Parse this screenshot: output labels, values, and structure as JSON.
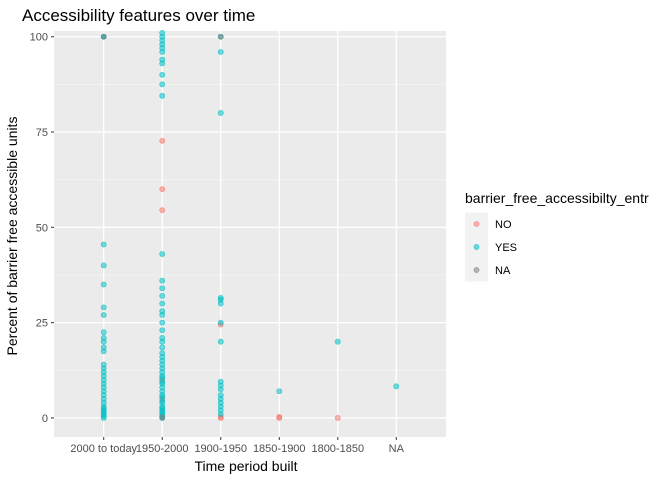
{
  "chart_data": {
    "type": "scatter",
    "title": "Accessibility features over time",
    "xlabel": "Time period built",
    "ylabel": "Percent of barrier free accessible units",
    "categories": [
      "2000 to today",
      "1950-2000",
      "1900-1950",
      "1850-1900",
      "1800-1850",
      "NA"
    ],
    "ylim": [
      -5,
      101.5
    ],
    "yticks": [
      0,
      25,
      50,
      75,
      100
    ],
    "grid": true,
    "legend": {
      "title": "barrier_free_accessibilty_entr",
      "placement": "right",
      "entries": [
        {
          "label": "NO",
          "color": "#F8766D"
        },
        {
          "label": "YES",
          "color": "#00BFC4"
        },
        {
          "label": "NA",
          "color": "#7F7F7F"
        }
      ]
    },
    "series": [
      {
        "name": "NO",
        "color": "#F8766D",
        "points": [
          [
            "1950-2000",
            72.7
          ],
          [
            "1950-2000",
            60
          ],
          [
            "1950-2000",
            54.5
          ],
          [
            "1950-2000",
            0
          ],
          [
            "1950-2000",
            5
          ],
          [
            "1950-2000",
            10
          ],
          [
            "1900-1950",
            24.5
          ],
          [
            "1900-1950",
            0
          ],
          [
            "1900-1950",
            0.3
          ],
          [
            "1850-1900",
            0
          ],
          [
            "1850-1900",
            0.3
          ],
          [
            "1800-1850",
            0
          ]
        ]
      },
      {
        "name": "YES",
        "color": "#00BFC4",
        "points": [
          [
            "2000 to today",
            100
          ],
          [
            "2000 to today",
            100
          ],
          [
            "2000 to today",
            45.5
          ],
          [
            "2000 to today",
            40
          ],
          [
            "2000 to today",
            35
          ],
          [
            "2000 to today",
            29
          ],
          [
            "2000 to today",
            27
          ],
          [
            "2000 to today",
            22.5
          ],
          [
            "2000 to today",
            21
          ],
          [
            "2000 to today",
            20
          ],
          [
            "2000 to today",
            18.5
          ],
          [
            "2000 to today",
            17.5
          ],
          [
            "2000 to today",
            14
          ],
          [
            "2000 to today",
            13
          ],
          [
            "2000 to today",
            12
          ],
          [
            "2000 to today",
            11
          ],
          [
            "2000 to today",
            10
          ],
          [
            "2000 to today",
            9
          ],
          [
            "2000 to today",
            8
          ],
          [
            "2000 to today",
            7
          ],
          [
            "2000 to today",
            6
          ],
          [
            "2000 to today",
            5
          ],
          [
            "2000 to today",
            4
          ],
          [
            "2000 to today",
            3
          ],
          [
            "2000 to today",
            2.5
          ],
          [
            "2000 to today",
            2
          ],
          [
            "2000 to today",
            1.5
          ],
          [
            "2000 to today",
            1
          ],
          [
            "2000 to today",
            0.5
          ],
          [
            "2000 to today",
            0
          ],
          [
            "1950-2000",
            101
          ],
          [
            "1950-2000",
            100
          ],
          [
            "1950-2000",
            99
          ],
          [
            "1950-2000",
            98
          ],
          [
            "1950-2000",
            97
          ],
          [
            "1950-2000",
            96
          ],
          [
            "1950-2000",
            94
          ],
          [
            "1950-2000",
            93
          ],
          [
            "1950-2000",
            90
          ],
          [
            "1950-2000",
            87.5
          ],
          [
            "1950-2000",
            84.5
          ],
          [
            "1950-2000",
            43
          ],
          [
            "1950-2000",
            36
          ],
          [
            "1950-2000",
            34
          ],
          [
            "1950-2000",
            32
          ],
          [
            "1950-2000",
            30
          ],
          [
            "1950-2000",
            28
          ],
          [
            "1950-2000",
            27
          ],
          [
            "1950-2000",
            25
          ],
          [
            "1950-2000",
            23
          ],
          [
            "1950-2000",
            21
          ],
          [
            "1950-2000",
            20
          ],
          [
            "1950-2000",
            18.5
          ],
          [
            "1950-2000",
            17
          ],
          [
            "1950-2000",
            16
          ],
          [
            "1950-2000",
            15
          ],
          [
            "1950-2000",
            14
          ],
          [
            "1950-2000",
            13
          ],
          [
            "1950-2000",
            12
          ],
          [
            "1950-2000",
            11
          ],
          [
            "1950-2000",
            10.5
          ],
          [
            "1950-2000",
            9.5
          ],
          [
            "1950-2000",
            9
          ],
          [
            "1950-2000",
            8
          ],
          [
            "1950-2000",
            7
          ],
          [
            "1950-2000",
            6
          ],
          [
            "1950-2000",
            5.5
          ],
          [
            "1950-2000",
            4.5
          ],
          [
            "1950-2000",
            4
          ],
          [
            "1950-2000",
            3
          ],
          [
            "1950-2000",
            2.5
          ],
          [
            "1950-2000",
            2
          ],
          [
            "1950-2000",
            1.5
          ],
          [
            "1950-2000",
            1
          ],
          [
            "1950-2000",
            0.5
          ],
          [
            "1950-2000",
            0
          ],
          [
            "1900-1950",
            100
          ],
          [
            "1900-1950",
            96
          ],
          [
            "1900-1950",
            80
          ],
          [
            "1900-1950",
            31.5
          ],
          [
            "1900-1950",
            31
          ],
          [
            "1900-1950",
            30
          ],
          [
            "1900-1950",
            25
          ],
          [
            "1900-1950",
            20
          ],
          [
            "1900-1950",
            9.5
          ],
          [
            "1900-1950",
            8.5
          ],
          [
            "1900-1950",
            7.5
          ],
          [
            "1900-1950",
            6
          ],
          [
            "1900-1950",
            5
          ],
          [
            "1900-1950",
            4
          ],
          [
            "1900-1950",
            3
          ],
          [
            "1900-1950",
            2
          ],
          [
            "1900-1950",
            1
          ],
          [
            "1850-1900",
            7
          ],
          [
            "1800-1850",
            20
          ],
          [
            "NA",
            8.3
          ]
        ]
      },
      {
        "name": "NA",
        "color": "#7F7F7F",
        "points": [
          [
            "2000 to today",
            100
          ],
          [
            "1900-1950",
            100
          ],
          [
            "1950-2000",
            0.2
          ]
        ]
      }
    ]
  }
}
